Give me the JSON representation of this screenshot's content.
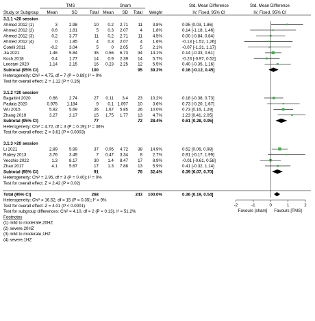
{
  "headers": {
    "group1": "TMS",
    "group2": "Sham",
    "study": "Study or Subgroup",
    "mean1": "Mean",
    "sd1": "SD",
    "total1": "Total",
    "mean2": "Mean",
    "sd2": "SD",
    "total2": "Total",
    "weight": "Weight",
    "effect_top": "Std. Mean Difference",
    "effect_sub": "IV, Fixed, 95% CI",
    "plot_top": "Std. Mean Difference",
    "plot_sub": "IV, Fixed, 95% CI"
  },
  "rows": [
    {
      "kind": "group",
      "text": "3.1.1 <20 session"
    },
    {
      "kind": "study",
      "name": "Ahmed 2012 (1)",
      "m1": "3",
      "sd1": "2.98",
      "n1": "10",
      "m2": "0.2",
      "sd2": "2.71",
      "n2": "11",
      "w": "3.8%",
      "ci": "0.95 [0.03, 1.86]"
    },
    {
      "kind": "study",
      "name": "Ahmed 2012 (2)",
      "m1": "0.6",
      "sd1": "1.81",
      "n1": "5",
      "m2": "0.3",
      "sd2": "2.07",
      "n2": "4",
      "w": "1.8%",
      "ci": "0.14 [-1.18, 1.46]"
    },
    {
      "kind": "study",
      "name": "Ahmed 2012 (3)",
      "m1": "0.2",
      "sd1": "3.77",
      "n1": "11",
      "m2": "0.2",
      "sd2": "2.71",
      "n2": "11",
      "w": "4.5%",
      "ci": "0.00 [-0.84, 0.84]"
    },
    {
      "kind": "study",
      "name": "Ahmed 2012 (4)",
      "m1": "0",
      "sd1": "1.85",
      "n1": "4",
      "m2": "0.3",
      "sd2": "2.07",
      "n2": "4",
      "w": "1.6%",
      "ci": "-0.13 [-1.52, 1.26]"
    },
    {
      "kind": "study",
      "name": "Cotelli 2011",
      "m1": "-0.2",
      "sd1": "3.04",
      "n1": "5",
      "m2": "0",
      "sd2": "2.05",
      "n2": "5",
      "w": "2.1%",
      "ci": "-0.07 [-1.31, 1.17]"
    },
    {
      "kind": "study",
      "name": "Jia 2021",
      "m1": "1.46",
      "sd1": "5.84",
      "n1": "35",
      "m2": "0.56",
      "sd2": "6.73",
      "n2": "34",
      "w": "14.1%",
      "ci": "0.14 [-0.33, 0.61]"
    },
    {
      "kind": "study",
      "name": "Koch 2018",
      "m1": "0.4",
      "sd1": "1.77",
      "n1": "14",
      "m2": "0.9",
      "sd2": "2.39",
      "n2": "14",
      "w": "5.7%",
      "ci": "-0.23 [-0.97, 0.52]"
    },
    {
      "kind": "study",
      "name": "Leocani 2020",
      "m1": "1.14",
      "sd1": "2.15",
      "n1": "16",
      "m2": "0.23",
      "sd2": "2.25",
      "n2": "12",
      "w": "5.5%",
      "ci": "0.40 [-0.35, 1.16]"
    },
    {
      "kind": "subtotal",
      "name": "Subtotal (95% CI)",
      "n1": "100",
      "n2": "95",
      "w": "39.2%",
      "ci": "0.16 [-0.12, 0.45]"
    },
    {
      "kind": "note",
      "text": "Heterogeneity: Chi² = 4.75, df = 7 (P = 0.69); I² = 0%"
    },
    {
      "kind": "note",
      "text": "Test for overall effect: Z = 1.12 (P = 0.26)"
    },
    {
      "kind": "blank"
    },
    {
      "kind": "group",
      "text": "3.1.2 =20 session"
    },
    {
      "kind": "study",
      "name": "Bagattini 2020",
      "m1": "0.66",
      "sd1": "2.74",
      "n1": "27",
      "m2": "0.11",
      "sd2": "3.4",
      "n2": "23",
      "w": "10.2%",
      "ci": "0.18 [-0.38, 0.73]"
    },
    {
      "kind": "study",
      "name": "Padala 2020",
      "m1": "0.975",
      "sd1": "1.184",
      "n1": "9",
      "m2": "0.1",
      "sd2": "1.097",
      "n2": "10",
      "w": "3.6%",
      "ci": "0.73 [-0.20, 1.67]"
    },
    {
      "kind": "study",
      "name": "Wu 2015",
      "m1": "5.92",
      "sd1": "5.69",
      "n1": "26",
      "m2": "1.67",
      "sd2": "5.85",
      "n2": "26",
      "w": "10.0%",
      "ci": "0.73 [0.16, 1.29]"
    },
    {
      "kind": "study",
      "name": "Zhang 2019",
      "m1": "3.27",
      "sd1": "2.17",
      "n1": "15",
      "m2": "1.75",
      "sd2": "1.77",
      "n2": "13",
      "w": "4.7%",
      "ci": "1.23 [0.41, 2.05]"
    },
    {
      "kind": "subtotal",
      "name": "Subtotal (95% CI)",
      "n1": "77",
      "n2": "72",
      "w": "28.4%",
      "ci": "0.61 [0.28, 0.95]"
    },
    {
      "kind": "note",
      "text": "Heterogeneity: Chi² = 4.72, df = 3 (P = 0.19); I² = 36%"
    },
    {
      "kind": "note",
      "text": "Test for overall effect: Z = 3.61 (P = 0.0003)"
    },
    {
      "kind": "blank"
    },
    {
      "kind": "group",
      "text": "3.1.3 >20 session"
    },
    {
      "kind": "study",
      "name": "Li 2021",
      "m1": "2.89",
      "sd1": "5.99",
      "n1": "37",
      "m2": "0.05",
      "sd2": "4.72",
      "n2": "38",
      "w": "14.9%",
      "ci": "0.52 [0.06, 0.98]"
    },
    {
      "kind": "study",
      "name": "Rabey 2013",
      "m1": "3.76",
      "sd1": "3.49",
      "n1": "7",
      "m2": "0.47",
      "sd2": "3.34",
      "n2": "8",
      "w": "2.7%",
      "ci": "0.91 [-0.17, 1.99]"
    },
    {
      "kind": "study",
      "name": "Vecchio 2022",
      "m1": "1.3",
      "sd1": "8.17",
      "n1": "30",
      "m2": "1.4",
      "sd2": "8.47",
      "n2": "17",
      "w": "8.9%",
      "ci": "-0.01 [-0.61, 0.58]"
    },
    {
      "kind": "study",
      "name": "Zhao 2017",
      "m1": "4.1",
      "sd1": "5.67",
      "n1": "17",
      "m2": "1.3",
      "sd2": "7.88",
      "n2": "13",
      "w": "5.9%",
      "ci": "0.41 [-0.32, 1.14]"
    },
    {
      "kind": "subtotal",
      "name": "Subtotal (95% CI)",
      "n1": "91",
      "n2": "76",
      "w": "32.4%",
      "ci": "0.39 [0.07, 0.70]"
    },
    {
      "kind": "note",
      "text": "Heterogeneity: Chi² = 2.95, df = 3 (P = 0.40); I² = 0%"
    },
    {
      "kind": "note",
      "text": "Test for overall effect: Z = 2.42 (P = 0.02)"
    },
    {
      "kind": "blank"
    },
    {
      "kind": "total",
      "name": "Total (95% CI)",
      "n1": "268",
      "n2": "243",
      "w": "100.0%",
      "ci": "0.36 [0.19, 0.54]"
    },
    {
      "kind": "note",
      "text": "Heterogeneity: Chi² = 16.52, df = 15 (P = 0.35); I² = 9%"
    },
    {
      "kind": "note",
      "text": "Test for overall effect: Z = 4.01 (P < 0.0001)"
    },
    {
      "kind": "note",
      "text": "Test for subgroup differences: Chi² = 4.10, df = 2 (P = 0.13), I² = 51.2%"
    },
    {
      "kind": "footnote_title",
      "text": "Footnotes"
    },
    {
      "kind": "footnote",
      "text": "(1) mild to moderate,20HZ"
    },
    {
      "kind": "footnote",
      "text": "(2) severe,20HZ"
    },
    {
      "kind": "footnote",
      "text": "(3) mild to moderate,1HZ"
    },
    {
      "kind": "footnote",
      "text": "(4) severe,1HZ"
    }
  ],
  "axis": {
    "ticks": [
      -2,
      -1,
      0,
      1,
      2
    ],
    "tick_labels": [
      "-2",
      "-1",
      "0",
      "1",
      "2"
    ],
    "left_label": "Favours [sham]",
    "right_label": "Favours [TMS]"
  },
  "colors": {
    "study_marker": "#3fae49",
    "line": "#000000",
    "diamond": "#000000",
    "header_rule": "#000000"
  },
  "chart_data": {
    "type": "forest",
    "xlim": [
      -2,
      2
    ],
    "studies": [
      {
        "name": "Ahmed 2012 (1)",
        "group": "3.1.1 <20 session",
        "smd": 0.95,
        "lo": 0.03,
        "hi": 1.86,
        "weight": 3.8
      },
      {
        "name": "Ahmed 2012 (2)",
        "group": "3.1.1 <20 session",
        "smd": 0.14,
        "lo": -1.18,
        "hi": 1.46,
        "weight": 1.8
      },
      {
        "name": "Ahmed 2012 (3)",
        "group": "3.1.1 <20 session",
        "smd": 0.0,
        "lo": -0.84,
        "hi": 0.84,
        "weight": 4.5
      },
      {
        "name": "Ahmed 2012 (4)",
        "group": "3.1.1 <20 session",
        "smd": -0.13,
        "lo": -1.52,
        "hi": 1.26,
        "weight": 1.6
      },
      {
        "name": "Cotelli 2011",
        "group": "3.1.1 <20 session",
        "smd": -0.07,
        "lo": -1.31,
        "hi": 1.17,
        "weight": 2.1
      },
      {
        "name": "Jia 2021",
        "group": "3.1.1 <20 session",
        "smd": 0.14,
        "lo": -0.33,
        "hi": 0.61,
        "weight": 14.1
      },
      {
        "name": "Koch 2018",
        "group": "3.1.1 <20 session",
        "smd": -0.23,
        "lo": -0.97,
        "hi": 0.52,
        "weight": 5.7
      },
      {
        "name": "Leocani 2020",
        "group": "3.1.1 <20 session",
        "smd": 0.4,
        "lo": -0.35,
        "hi": 1.16,
        "weight": 5.5
      },
      {
        "name": "Bagattini 2020",
        "group": "3.1.2 =20 session",
        "smd": 0.18,
        "lo": -0.38,
        "hi": 0.73,
        "weight": 10.2
      },
      {
        "name": "Padala 2020",
        "group": "3.1.2 =20 session",
        "smd": 0.73,
        "lo": -0.2,
        "hi": 1.67,
        "weight": 3.6
      },
      {
        "name": "Wu 2015",
        "group": "3.1.2 =20 session",
        "smd": 0.73,
        "lo": 0.16,
        "hi": 1.29,
        "weight": 10.0
      },
      {
        "name": "Zhang 2019",
        "group": "3.1.2 =20 session",
        "smd": 1.23,
        "lo": 0.41,
        "hi": 2.05,
        "weight": 4.7
      },
      {
        "name": "Li 2021",
        "group": "3.1.3 >20 session",
        "smd": 0.52,
        "lo": 0.06,
        "hi": 0.98,
        "weight": 14.9
      },
      {
        "name": "Rabey 2013",
        "group": "3.1.3 >20 session",
        "smd": 0.91,
        "lo": -0.17,
        "hi": 1.99,
        "weight": 2.7
      },
      {
        "name": "Vecchio 2022",
        "group": "3.1.3 >20 session",
        "smd": -0.01,
        "lo": -0.61,
        "hi": 0.58,
        "weight": 8.9
      },
      {
        "name": "Zhao 2017",
        "group": "3.1.3 >20 session",
        "smd": 0.41,
        "lo": -0.32,
        "hi": 1.14,
        "weight": 5.9
      }
    ],
    "subtotals": [
      {
        "group": "3.1.1 <20 session",
        "smd": 0.16,
        "lo": -0.12,
        "hi": 0.45,
        "weight": 39.2
      },
      {
        "group": "3.1.2 =20 session",
        "smd": 0.61,
        "lo": 0.28,
        "hi": 0.95,
        "weight": 28.4
      },
      {
        "group": "3.1.3 >20 session",
        "smd": 0.39,
        "lo": 0.07,
        "hi": 0.7,
        "weight": 32.4
      }
    ],
    "total": {
      "smd": 0.36,
      "lo": 0.19,
      "hi": 0.54,
      "weight": 100.0
    }
  }
}
